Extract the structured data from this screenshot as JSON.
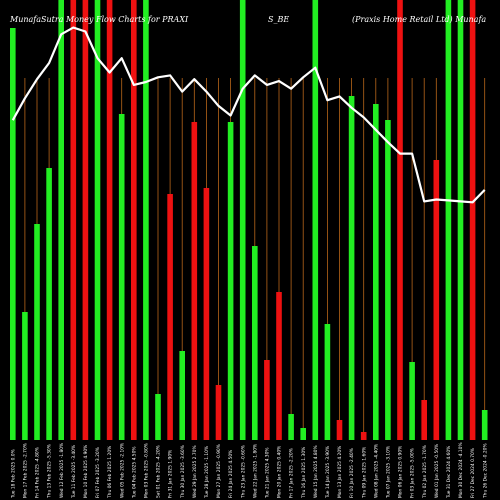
{
  "chart_data": {
    "type": "bar",
    "title_parts": [
      "MunafaSutra Money Flow Charts for PRAXI",
      "S_BE",
      "(Praxis Home Retail Ltd) Munafa"
    ],
    "categories": [
      "Tue 18 Feb 2025 0.0%",
      "Mon 17 Feb 2025 -2.70%",
      "Fri 14 Feb 2025 -4.80%",
      "Thu 13 Feb 2025 -5.30%",
      "Wed 12 Feb 2025 -1.80%",
      "Tue 11 Feb 2025 -3.40%",
      "Mon 10 Feb 2025 4.90%",
      "Fri 07 Feb 2025 -3.20%",
      "Thu 06 Feb 2025 1.20%",
      "Wed 05 Feb 2025 -2.10%",
      "Tue 04 Feb 2025 4.50%",
      "Mon 03 Feb 2025 -0.80%",
      "Sat 01 Feb 2025 -4.20%",
      "Fri 31 Jan 2025 1.90%",
      "Thu 30 Jan 2025 -3.60%",
      "Wed 29 Jan 2025 2.70%",
      "Tue 28 Jan 2025 -1.10%",
      "Mon 27 Jan 2025 -0.90%",
      "Fri 24 Jan 2025 4.50%",
      "Thu 23 Jan 2025 -0.60%",
      "Wed 22 Jan 2025 -1.80%",
      "Tue 21 Jan 2025 4.30%",
      "Mon 20 Jan 2025 0.40%",
      "Fri 17 Jan 2025 -2.20%",
      "Thu 16 Jan 2025 1.30%",
      "Wed 15 Jan 2025 4.80%",
      "Tue 14 Jan 2025 -3.90%",
      "Mon 13 Jan 2025 4.20%",
      "Fri 10 Jan 2025 -2.40%",
      "Thu 09 Jan 2025 1.60%",
      "Wed 08 Jan 2025 -4.40%",
      "Tue 07 Jan 2025 -3.10%",
      "Mon 06 Jan 2025 0.90%",
      "Fri 03 Jan 2025 -5.00%",
      "Thu 02 Jan 2025 -1.70%",
      "Wed 01 Jan 2025 -0.50%",
      "Tue 31 Dec 2024 4.60%",
      "Mon 30 Dec 2024 -4.10%",
      "Fri 27 Dec 2024 0.70%",
      "Thu 26 Dec 2024 -0.20%"
    ],
    "series": [
      {
        "values": [
          412,
          128,
          216,
          272,
          440,
          460,
          460,
          460,
          460,
          326,
          460,
          460,
          46,
          246,
          89,
          318,
          252,
          55,
          318,
          460,
          194,
          80,
          148,
          26,
          12,
          460,
          116,
          20,
          344,
          8,
          336,
          320,
          460,
          78,
          40,
          280,
          460,
          460,
          460,
          30
        ],
        "colors": [
          "#22ee22",
          "#22ee22",
          "#22ee22",
          "#22ee22",
          "#22ee22",
          "#ee1111",
          "#ee1111",
          "#22ee22",
          "#ee1111",
          "#22ee22",
          "#ee1111",
          "#22ee22",
          "#22ee22",
          "#ee1111",
          "#22ee22",
          "#ee1111",
          "#ee1111",
          "#ee1111",
          "#22ee22",
          "#22ee22",
          "#22ee22",
          "#ee1111",
          "#ee1111",
          "#22ee22",
          "#22ee22",
          "#22ee22",
          "#22ee22",
          "#ee1111",
          "#22ee22",
          "#ee1111",
          "#22ee22",
          "#22ee22",
          "#ee1111",
          "#22ee22",
          "#ee1111",
          "#ee1111",
          "#22ee22",
          "#22ee22",
          "#ee1111",
          "#22ee22"
        ]
      },
      {
        "type": "line",
        "color": "#ffffff",
        "values": [
          105,
          82,
          62,
          45,
          15,
          8,
          12,
          40,
          55,
          40,
          68,
          65,
          60,
          58,
          75,
          62,
          75,
          90,
          100,
          72,
          58,
          68,
          64,
          72,
          60,
          50,
          84,
          80,
          92,
          102,
          115,
          128,
          140,
          140,
          190,
          188,
          189,
          190,
          191,
          178
        ]
      }
    ],
    "legend": "none",
    "grid": "vertical orange lines",
    "colors": {
      "background": "#000000",
      "up": "#22ee22",
      "down": "#ee1111",
      "line": "#ffffff",
      "grid": "#b8661a"
    }
  }
}
